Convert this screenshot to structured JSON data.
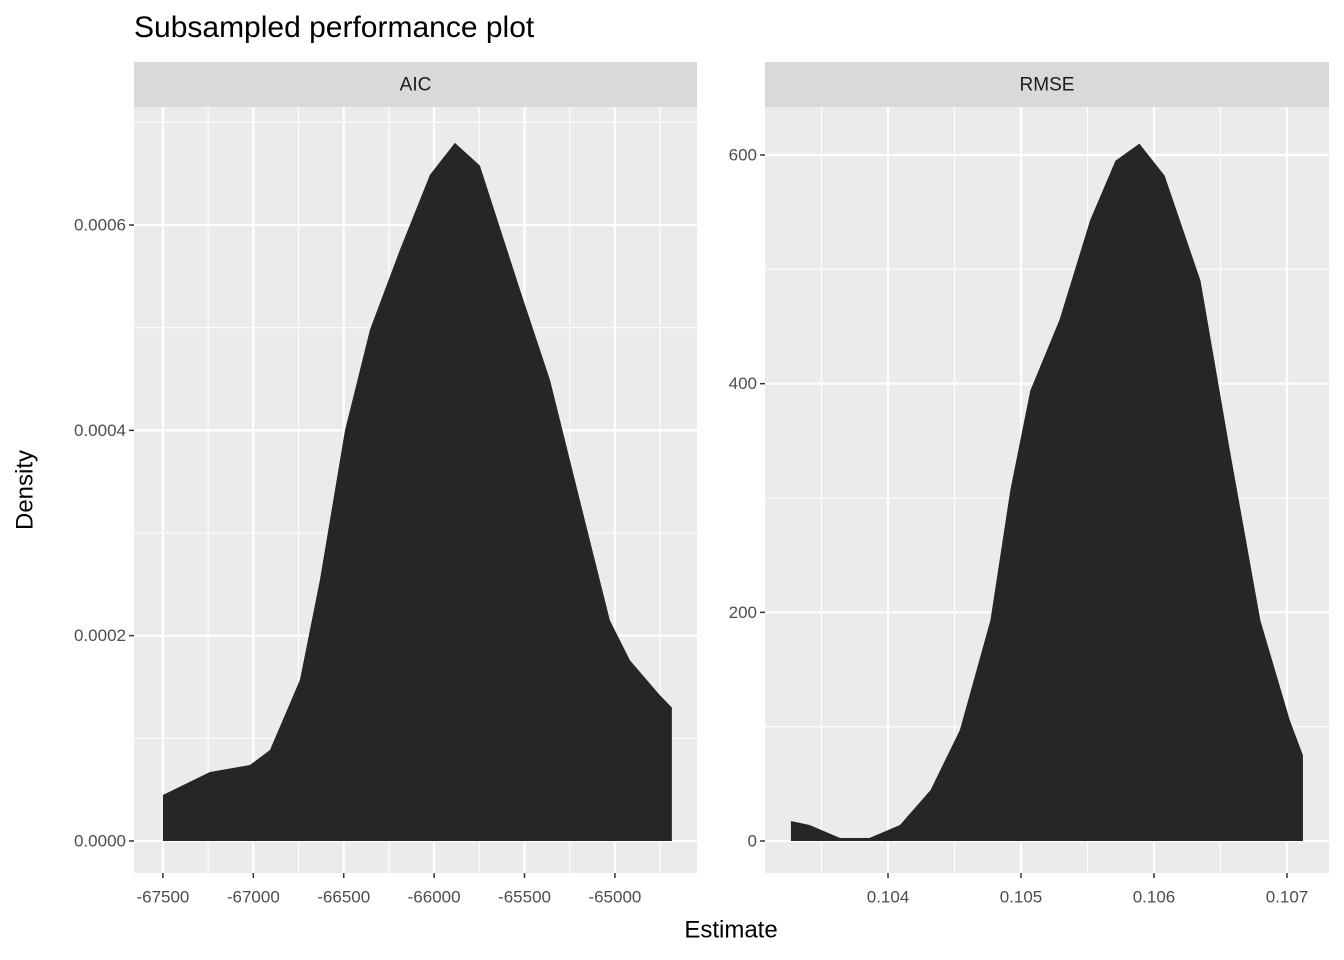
{
  "title": "Subsampled performance plot",
  "x_label": "Estimate",
  "y_label": "Density",
  "chart_data": [
    {
      "type": "area",
      "title": "AIC",
      "color": "#262626",
      "grid": true,
      "x": [
        -67500,
        -67240,
        -67019,
        -66908,
        -66742,
        -66632,
        -66493,
        -66355,
        -66189,
        -66023,
        -65885,
        -65747,
        -65525,
        -65359,
        -65194,
        -65028,
        -64917,
        -64751,
        -64685
      ],
      "values": [
        4.48e-05,
        6.72e-05,
        7.4e-05,
        8.86e-05,
        0.000157,
        0.000254,
        0.0004,
        0.000498,
        0.000576,
        0.000649,
        0.00068,
        0.000658,
        0.000537,
        0.000449,
        0.000332,
        0.000215,
        0.000176,
        0.000142,
        0.00013
      ],
      "xlim": [
        -67660,
        -64546
      ],
      "ylim": [
        -3.12e-05,
        0.000715
      ],
      "xticks": [
        -67500,
        -67000,
        -66500,
        -66000,
        -65500,
        -65000
      ],
      "yticks": [
        {
          "value": 0,
          "label": "0.0000"
        },
        {
          "value": 0.0002,
          "label": "0.0002"
        },
        {
          "value": 0.0004,
          "label": "0.0004"
        },
        {
          "value": 0.0006,
          "label": "0.0006"
        }
      ]
    },
    {
      "type": "area",
      "title": "RMSE",
      "color": "#262626",
      "grid": true,
      "x": [
        0.10327,
        0.10341,
        0.10364,
        0.10386,
        0.10409,
        0.10432,
        0.10454,
        0.10477,
        0.10492,
        0.10507,
        0.10529,
        0.10552,
        0.10571,
        0.10589,
        0.10608,
        0.10635,
        0.10657,
        0.1068,
        0.10702,
        0.10712
      ],
      "values": [
        17.5,
        14,
        2.6,
        2.6,
        14,
        44.6,
        97,
        193,
        307,
        394,
        456,
        543,
        595,
        610,
        582,
        490,
        342,
        193,
        106,
        75
      ],
      "xlim": [
        0.103075,
        0.107316
      ],
      "ylim": [
        -28,
        642
      ],
      "xticks": [
        0.104,
        0.105,
        0.106,
        0.107
      ],
      "yticks": [
        0,
        200,
        400,
        600
      ]
    }
  ]
}
